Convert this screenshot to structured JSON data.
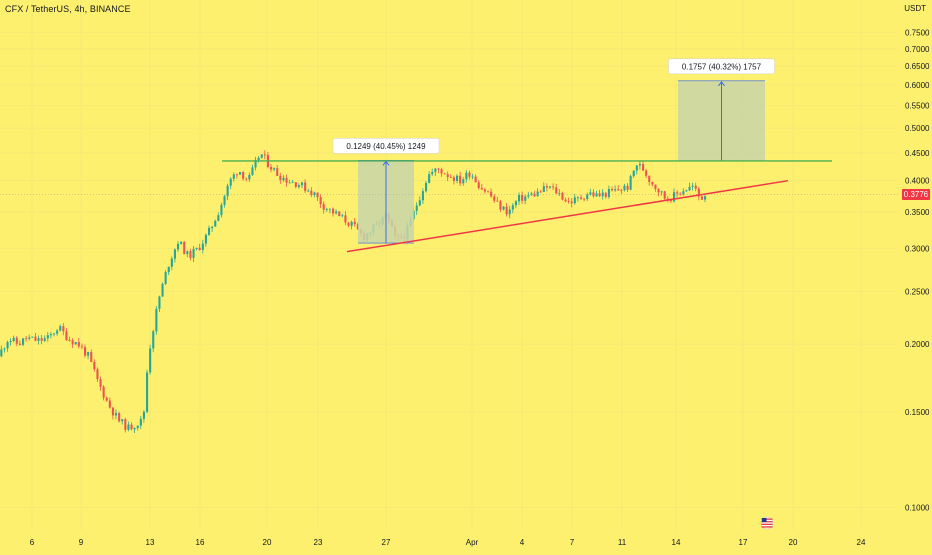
{
  "header": {
    "symbol": "CFX / TetherUS, 4h, BINANCE",
    "currency": "USDT"
  },
  "colors": {
    "background": "#fdf06e",
    "up_candle": "#26a69a",
    "down_candle": "#ef5350",
    "resistance_line": "#4caf50",
    "support_line": "#f23645",
    "measure_box": "#c8d5a8",
    "measure_arrow": "#2962ff",
    "price_badge": "#f23645"
  },
  "chart_data": {
    "type": "candlestick",
    "y_scale": "log",
    "ylim": [
      0.095,
      0.78
    ],
    "y_ticks": [
      0.1,
      0.15,
      0.2,
      0.25,
      0.3,
      0.35,
      0.4,
      0.45,
      0.5,
      0.55,
      0.6,
      0.65,
      0.7,
      0.75
    ],
    "y_tick_labels": [
      "0.1000",
      "0.1500",
      "0.2000",
      "0.2500",
      "0.3000",
      "0.3500",
      "0.4000",
      "0.4500",
      "0.5000",
      "0.5500",
      "0.6000",
      "0.6500",
      "0.7000",
      "0.7500"
    ],
    "x_tick_labels": [
      "6",
      "9",
      "13",
      "16",
      "20",
      "23",
      "27",
      "Apr",
      "4",
      "7",
      "11",
      "14",
      "17",
      "20",
      "24"
    ],
    "last_price": 0.3776,
    "last_price_label": "0.3776",
    "price_path": [
      [
        0,
        0.19
      ],
      [
        10,
        0.205
      ],
      [
        20,
        0.2
      ],
      [
        28,
        0.205
      ],
      [
        40,
        0.203
      ],
      [
        50,
        0.205
      ],
      [
        60,
        0.215
      ],
      [
        70,
        0.205
      ],
      [
        80,
        0.2
      ],
      [
        90,
        0.19
      ],
      [
        100,
        0.17
      ],
      [
        110,
        0.155
      ],
      [
        120,
        0.145
      ],
      [
        130,
        0.14
      ],
      [
        145,
        0.145
      ],
      [
        150,
        0.19
      ],
      [
        160,
        0.24
      ],
      [
        170,
        0.28
      ],
      [
        180,
        0.31
      ],
      [
        190,
        0.29
      ],
      [
        200,
        0.3
      ],
      [
        210,
        0.32
      ],
      [
        220,
        0.35
      ],
      [
        232,
        0.4
      ],
      [
        240,
        0.42
      ],
      [
        250,
        0.4
      ],
      [
        262,
        0.45
      ],
      [
        270,
        0.43
      ],
      [
        280,
        0.41
      ],
      [
        290,
        0.4
      ],
      [
        300,
        0.395
      ],
      [
        315,
        0.38
      ],
      [
        325,
        0.36
      ],
      [
        335,
        0.35
      ],
      [
        345,
        0.34
      ],
      [
        355,
        0.33
      ],
      [
        365,
        0.315
      ],
      [
        378,
        0.33
      ],
      [
        388,
        0.345
      ],
      [
        398,
        0.31
      ],
      [
        408,
        0.32
      ],
      [
        418,
        0.36
      ],
      [
        430,
        0.41
      ],
      [
        440,
        0.42
      ],
      [
        450,
        0.41
      ],
      [
        462,
        0.4
      ],
      [
        472,
        0.415
      ],
      [
        482,
        0.39
      ],
      [
        490,
        0.38
      ],
      [
        500,
        0.36
      ],
      [
        510,
        0.35
      ],
      [
        520,
        0.37
      ],
      [
        530,
        0.375
      ],
      [
        540,
        0.38
      ],
      [
        550,
        0.39
      ],
      [
        560,
        0.38
      ],
      [
        570,
        0.365
      ],
      [
        580,
        0.37
      ],
      [
        590,
        0.38
      ],
      [
        600,
        0.375
      ],
      [
        610,
        0.38
      ],
      [
        620,
        0.385
      ],
      [
        630,
        0.39
      ],
      [
        638,
        0.43
      ],
      [
        645,
        0.42
      ],
      [
        652,
        0.4
      ],
      [
        660,
        0.385
      ],
      [
        668,
        0.37
      ],
      [
        676,
        0.375
      ],
      [
        685,
        0.385
      ],
      [
        695,
        0.39
      ],
      [
        702,
        0.37
      ],
      [
        706,
        0.3776
      ]
    ],
    "annotations": [
      {
        "type": "horizontal_trendline",
        "color": "green",
        "y": 0.435,
        "x_from": 222,
        "x_to": 832
      },
      {
        "type": "rising_trendline",
        "color": "red",
        "points": [
          [
            347,
            0.296
          ],
          [
            788,
            0.4
          ]
        ]
      },
      {
        "type": "price_range",
        "label": "0.1249 (40.45%) 1249",
        "x_from": 358,
        "x_to": 414,
        "y_from": 0.307,
        "y_to": 0.436
      },
      {
        "type": "price_range",
        "label": "0.1757 (40.32%) 1757",
        "x_from": 678,
        "x_to": 765,
        "y_from": 0.435,
        "y_to": 0.611
      }
    ]
  }
}
